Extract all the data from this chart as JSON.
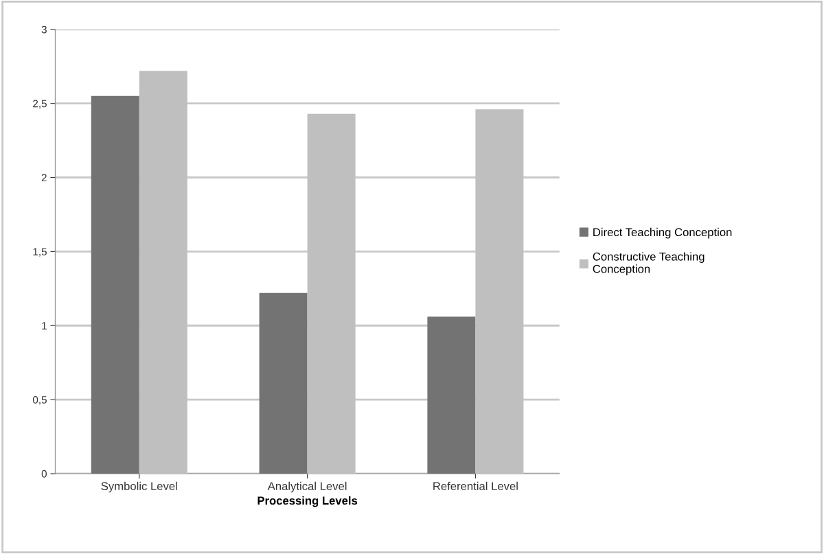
{
  "chart_data": {
    "type": "bar",
    "xlabel": "Processing Levels",
    "categories": [
      "Symbolic Level",
      "Analytical Level",
      "Referential Level"
    ],
    "series": [
      {
        "name": "Direct Teaching Conception",
        "color": "#737373",
        "values": [
          2.55,
          1.22,
          1.06
        ]
      },
      {
        "name": "Constructive Teaching\nConception",
        "color": "#bfbfbf",
        "values": [
          2.72,
          2.43,
          2.46
        ]
      }
    ],
    "ylim": [
      0,
      3
    ],
    "yticks": [
      0,
      {
        "value": 0.5,
        "label": "0,5"
      },
      1,
      {
        "value": 1.5,
        "label": "1,5"
      },
      2,
      {
        "value": 2.5,
        "label": "2,5"
      },
      3
    ],
    "grid": "y",
    "legend": "right"
  }
}
